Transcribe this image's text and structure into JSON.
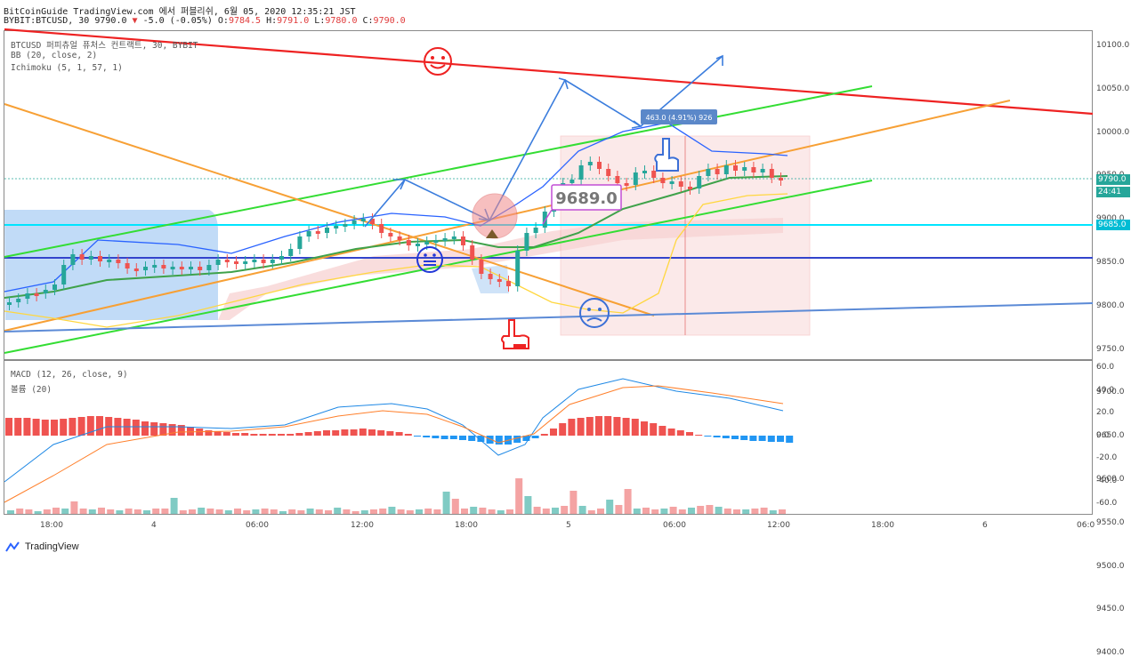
{
  "header": {
    "line1": "BitCoinGuide TradingView.com 에서 퍼블리쉬, 6월 05, 2020 12:35:21 JST",
    "symbol": "BYBIT:BTCUSD, 30",
    "price": "9790.0",
    "change": "-5.0 (-0.05%)",
    "o_label": "O:",
    "o_val": "9784.5",
    "h_label": "H:",
    "h_val": "9791.0",
    "l_label": "L:",
    "l_val": "9780.0",
    "c_label": "C:",
    "c_val": "9790.0"
  },
  "legend": {
    "title": "BTCUSD 퍼피츄얼 퓨처스 컨트랙트, 30, BYBIT",
    "bb": "BB (20, close, 2)",
    "ichimoku": "Ichimoku (5, 1, 57, 1)",
    "macd": "MACD (12, 26, close, 9)",
    "volume": "볼륨 (20)"
  },
  "price_axis": [
    "10100.0",
    "10050.0",
    "10000.0",
    "9950.0",
    "9900.0",
    "9850.0",
    "9800.0",
    "9750.0",
    "9700.0",
    "9650.0",
    "9600.0",
    "9550.0",
    "9500.0",
    "9450.0",
    "9400.0"
  ],
  "macd_axis": [
    "60.0",
    "40.0",
    "20.0",
    "0.0",
    "-20.0",
    "-40.0",
    "-60.0"
  ],
  "time_axis": [
    "18:00",
    "4",
    "06:00",
    "12:00",
    "18:00",
    "5",
    "06:00",
    "12:00",
    "18:00",
    "6",
    "06:0"
  ],
  "price_labels": {
    "last": "9790.0",
    "countdown": "24:41",
    "level": "9685.0",
    "hidden": "9700.0",
    "colors": {
      "last": "#26a69a",
      "countdown": "#26a69a",
      "level": "#00bcd4"
    }
  },
  "annotations": {
    "measure": "463.0 (4.91%) 926",
    "price_callout": "9689.0"
  },
  "brand": "TradingView",
  "colors": {
    "up": "#26a69a",
    "down": "#ef5350",
    "bb": "#2962ff",
    "trend_red": "#ee2222",
    "trend_green": "#33dd33",
    "trend_orange": "#f7a035",
    "support_blue": "#3355dd",
    "cyan": "#00e5ff"
  }
}
